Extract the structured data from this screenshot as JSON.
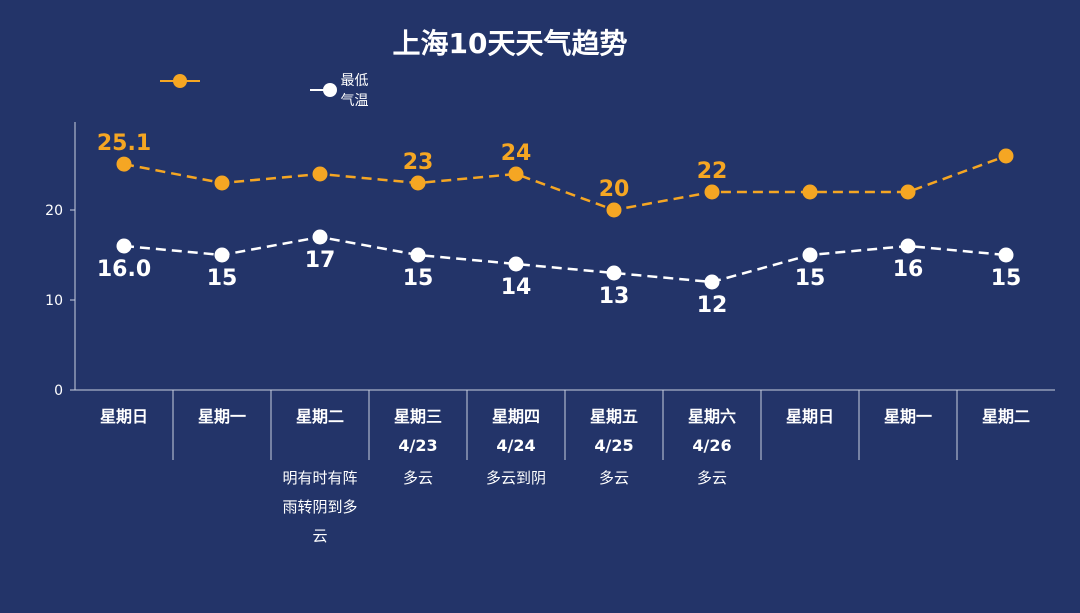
{
  "title": "上海10天天气趋势",
  "legend": [
    {
      "name": "",
      "color": "#f5a623"
    },
    {
      "name": "最低气温",
      "color": "#ffffff"
    }
  ],
  "chart_data": {
    "type": "line",
    "title": "上海10天天气趋势",
    "ylim": [
      0,
      30
    ],
    "yticks": [
      0,
      10,
      20
    ],
    "grid": false,
    "legend_position": "top",
    "series": [
      {
        "name": "",
        "color": "#f5a623",
        "values": [
          25.1,
          23,
          24,
          23,
          24,
          20,
          22,
          22,
          22,
          26
        ],
        "labels": [
          "25.1",
          "",
          "",
          "23",
          "24",
          "20",
          "22",
          "",
          "",
          ""
        ]
      },
      {
        "name": "最低气温",
        "color": "#ffffff",
        "values": [
          16.0,
          15,
          17,
          15,
          14,
          13,
          12,
          15,
          16,
          15
        ],
        "labels": [
          "16.0",
          "15",
          "17",
          "15",
          "14",
          "13",
          "12",
          "15",
          "16",
          "15"
        ]
      }
    ],
    "days": [
      {
        "weekday": "星期日",
        "date": "",
        "weather": []
      },
      {
        "weekday": "星期一",
        "date": "",
        "weather": []
      },
      {
        "weekday": "星期二",
        "date": "",
        "weather": [
          "明有时有阵",
          "雨转阴到多",
          "云"
        ]
      },
      {
        "weekday": "星期三",
        "date": "4/23",
        "weather": [
          "多云"
        ]
      },
      {
        "weekday": "星期四",
        "date": "4/24",
        "weather": [
          "多云到阴"
        ]
      },
      {
        "weekday": "星期五",
        "date": "4/25",
        "weather": [
          "多云"
        ]
      },
      {
        "weekday": "星期六",
        "date": "4/26",
        "weather": [
          "多云"
        ]
      },
      {
        "weekday": "星期日",
        "date": "",
        "weather": []
      },
      {
        "weekday": "星期一",
        "date": "",
        "weather": []
      },
      {
        "weekday": "星期二",
        "date": "",
        "weather": []
      }
    ]
  }
}
